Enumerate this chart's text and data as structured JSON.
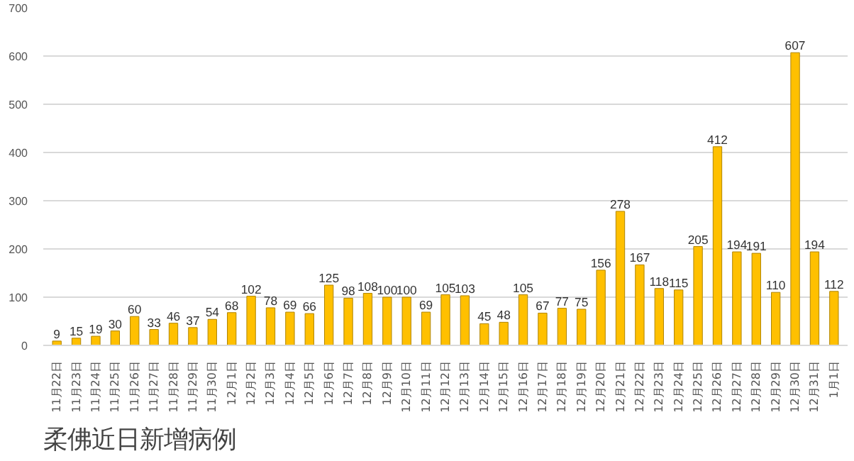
{
  "chart_data": {
    "type": "bar",
    "title": "柔佛近日新增病例",
    "categories": [
      "11月22日",
      "11月23日",
      "11月24日",
      "11月25日",
      "11月26日",
      "11月27日",
      "11月28日",
      "11月29日",
      "11月30日",
      "12月1日",
      "12月2日",
      "12月3日",
      "12月4日",
      "12月5日",
      "12月6日",
      "12月7日",
      "12月8日",
      "12月9日",
      "12月10日",
      "12月11日",
      "12月12日",
      "12月13日",
      "12月14日",
      "12月15日",
      "12月16日",
      "12月17日",
      "12月18日",
      "12月19日",
      "12月20日",
      "12月21日",
      "12月22日",
      "12月23日",
      "12月24日",
      "12月25日",
      "12月26日",
      "12月27日",
      "12月28日",
      "12月29日",
      "12月30日",
      "12月31日",
      "1月1日"
    ],
    "values": [
      9,
      15,
      19,
      30,
      60,
      33,
      46,
      37,
      54,
      68,
      102,
      78,
      69,
      66,
      125,
      98,
      108,
      100,
      100,
      69,
      105,
      103,
      45,
      48,
      105,
      67,
      77,
      75,
      156,
      278,
      167,
      118,
      115,
      205,
      412,
      194,
      191,
      110,
      607,
      194,
      112
    ],
    "color": "#ffc000",
    "ylim": [
      0,
      700
    ],
    "yticks": [
      0,
      100,
      200,
      300,
      400,
      500,
      600,
      700
    ],
    "grid": "y",
    "data_labels": true
  }
}
